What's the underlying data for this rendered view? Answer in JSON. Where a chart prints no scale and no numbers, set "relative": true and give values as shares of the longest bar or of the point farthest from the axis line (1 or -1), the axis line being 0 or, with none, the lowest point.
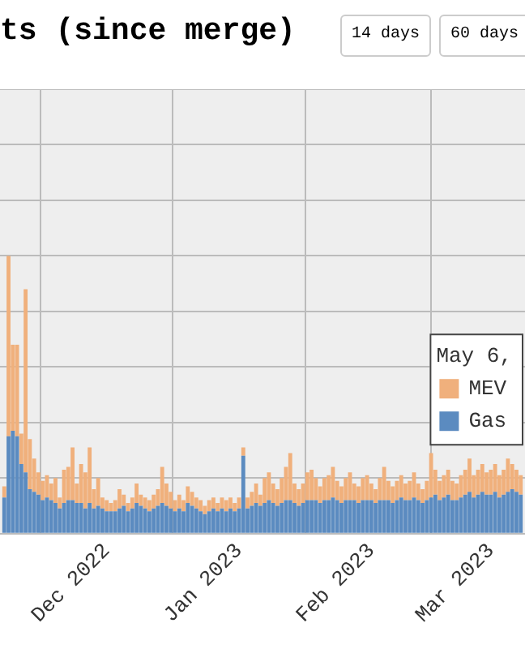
{
  "chart_data": {
    "type": "bar",
    "title": "ts (since merge)",
    "annotations": [
      "14 days",
      "60 days"
    ],
    "stacked": true,
    "relative": true,
    "grid": true,
    "legend": "right",
    "legend_title": "May 6,",
    "x": [
      "2022-11-07",
      "2022-11-08",
      "2022-11-09",
      "2022-11-10",
      "2022-11-11",
      "2022-11-12",
      "2022-11-13",
      "2022-11-14",
      "2022-11-15",
      "2022-11-16",
      "2022-11-17",
      "2022-11-18",
      "2022-11-19",
      "2022-11-20",
      "2022-11-21",
      "2022-11-22",
      "2022-11-23",
      "2022-11-24",
      "2022-11-25",
      "2022-11-26",
      "2022-11-27",
      "2022-11-28",
      "2022-11-29",
      "2022-11-30",
      "2022-12-01",
      "2022-12-02",
      "2022-12-03",
      "2022-12-04",
      "2022-12-05",
      "2022-12-06",
      "2022-12-07",
      "2022-12-08",
      "2022-12-09",
      "2022-12-10",
      "2022-12-11",
      "2022-12-12",
      "2022-12-13",
      "2022-12-14",
      "2022-12-15",
      "2022-12-16",
      "2022-12-17",
      "2022-12-18",
      "2022-12-19",
      "2022-12-20",
      "2022-12-21",
      "2022-12-22",
      "2022-12-23",
      "2022-12-24",
      "2022-12-25",
      "2022-12-26",
      "2022-12-27",
      "2022-12-28",
      "2022-12-29",
      "2022-12-30",
      "2022-12-31",
      "2023-01-01",
      "2023-01-02",
      "2023-01-03",
      "2023-01-04",
      "2023-01-05",
      "2023-01-06",
      "2023-01-07",
      "2023-01-08",
      "2023-01-09",
      "2023-01-10",
      "2023-01-11",
      "2023-01-12",
      "2023-01-13",
      "2023-01-14",
      "2023-01-15",
      "2023-01-16",
      "2023-01-17",
      "2023-01-18",
      "2023-01-19",
      "2023-01-20",
      "2023-01-21",
      "2023-01-22",
      "2023-01-23",
      "2023-01-24",
      "2023-01-25",
      "2023-01-26",
      "2023-01-27",
      "2023-01-28",
      "2023-01-29",
      "2023-01-30",
      "2023-01-31",
      "2023-02-01",
      "2023-02-02",
      "2023-02-03",
      "2023-02-04",
      "2023-02-05",
      "2023-02-06",
      "2023-02-07",
      "2023-02-08",
      "2023-02-09",
      "2023-02-10",
      "2023-02-11",
      "2023-02-12",
      "2023-02-13",
      "2023-02-14",
      "2023-02-15",
      "2023-02-16",
      "2023-02-17",
      "2023-02-18",
      "2023-02-19",
      "2023-02-20",
      "2023-02-21",
      "2023-02-22",
      "2023-02-23",
      "2023-02-24",
      "2023-02-25",
      "2023-02-26",
      "2023-02-27",
      "2023-02-28",
      "2023-03-01",
      "2023-03-02",
      "2023-03-03",
      "2023-03-04",
      "2023-03-05",
      "2023-03-06",
      "2023-03-07",
      "2023-03-08"
    ],
    "xlim": [
      "2022-11-06",
      "2023-03-09"
    ],
    "xticks": [
      {
        "value": "2022-12-01",
        "label": "Dec 2022"
      },
      {
        "value": "2023-01-01",
        "label": "Jan 2023"
      },
      {
        "value": "2023-02-01",
        "label": "Feb 2023"
      },
      {
        "value": "2023-03-01",
        "label": "Mar 2023"
      }
    ],
    "series": [
      {
        "name": "Gas",
        "color": "#5b8bc0",
        "values": [
          0.13,
          0.35,
          0.37,
          0.35,
          0.25,
          0.22,
          0.16,
          0.15,
          0.14,
          0.12,
          0.13,
          0.12,
          0.11,
          0.09,
          0.11,
          0.12,
          0.12,
          0.11,
          0.11,
          0.09,
          0.11,
          0.09,
          0.1,
          0.09,
          0.08,
          0.08,
          0.08,
          0.09,
          0.1,
          0.08,
          0.09,
          0.11,
          0.1,
          0.09,
          0.08,
          0.09,
          0.1,
          0.11,
          0.1,
          0.09,
          0.08,
          0.09,
          0.08,
          0.11,
          0.1,
          0.09,
          0.08,
          0.07,
          0.08,
          0.09,
          0.08,
          0.09,
          0.08,
          0.09,
          0.08,
          0.09,
          0.28,
          0.09,
          0.1,
          0.11,
          0.1,
          0.11,
          0.12,
          0.11,
          0.1,
          0.11,
          0.12,
          0.12,
          0.11,
          0.1,
          0.11,
          0.12,
          0.12,
          0.12,
          0.11,
          0.12,
          0.12,
          0.13,
          0.12,
          0.11,
          0.12,
          0.12,
          0.12,
          0.11,
          0.12,
          0.12,
          0.12,
          0.11,
          0.12,
          0.12,
          0.12,
          0.11,
          0.12,
          0.13,
          0.12,
          0.12,
          0.13,
          0.12,
          0.11,
          0.12,
          0.13,
          0.14,
          0.12,
          0.13,
          0.14,
          0.12,
          0.12,
          0.13,
          0.14,
          0.15,
          0.13,
          0.14,
          0.15,
          0.14,
          0.14,
          0.15,
          0.13,
          0.14,
          0.15,
          0.16,
          0.15,
          0.14
        ]
      },
      {
        "name": "MEV",
        "color": "#f0b07c",
        "values": [
          0.04,
          0.65,
          0.31,
          0.33,
          0.11,
          0.66,
          0.18,
          0.12,
          0.08,
          0.07,
          0.08,
          0.06,
          0.09,
          0.04,
          0.12,
          0.12,
          0.19,
          0.07,
          0.14,
          0.13,
          0.2,
          0.07,
          0.1,
          0.04,
          0.04,
          0.03,
          0.04,
          0.07,
          0.04,
          0.03,
          0.04,
          0.07,
          0.04,
          0.04,
          0.04,
          0.05,
          0.06,
          0.13,
          0.08,
          0.06,
          0.04,
          0.05,
          0.04,
          0.06,
          0.05,
          0.04,
          0.04,
          0.03,
          0.04,
          0.04,
          0.03,
          0.04,
          0.04,
          0.04,
          0.03,
          0.04,
          0.03,
          0.04,
          0.05,
          0.07,
          0.04,
          0.09,
          0.1,
          0.07,
          0.06,
          0.09,
          0.12,
          0.17,
          0.07,
          0.06,
          0.07,
          0.1,
          0.11,
          0.08,
          0.06,
          0.08,
          0.09,
          0.11,
          0.07,
          0.06,
          0.08,
          0.1,
          0.06,
          0.06,
          0.08,
          0.09,
          0.06,
          0.05,
          0.08,
          0.12,
          0.07,
          0.06,
          0.07,
          0.08,
          0.06,
          0.07,
          0.09,
          0.06,
          0.05,
          0.07,
          0.16,
          0.09,
          0.07,
          0.08,
          0.09,
          0.07,
          0.06,
          0.08,
          0.09,
          0.12,
          0.08,
          0.09,
          0.1,
          0.08,
          0.09,
          0.1,
          0.08,
          0.09,
          0.12,
          0.09,
          0.08,
          0.07
        ]
      }
    ]
  }
}
